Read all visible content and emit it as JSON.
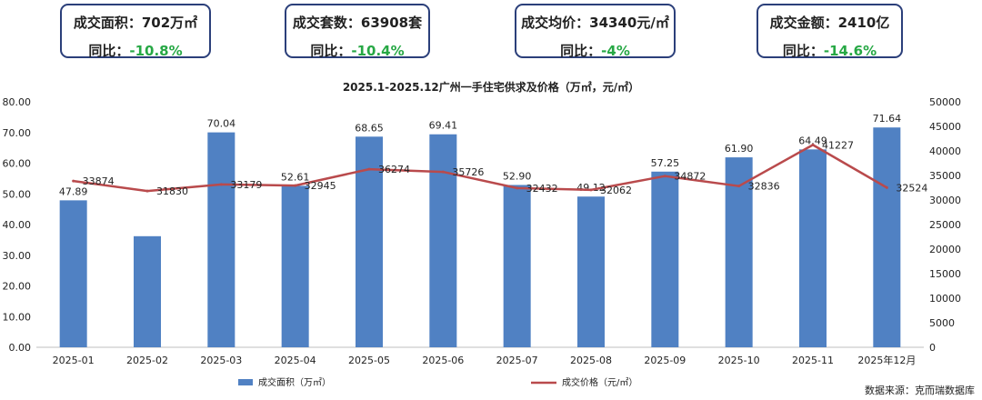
{
  "kpis": [
    {
      "label": "成交面积：",
      "value": "702万㎡",
      "yoy_label": "同比：",
      "yoy": "-10.8%"
    },
    {
      "label": "成交套数：",
      "value": "63908套",
      "yoy_label": "同比：",
      "yoy": "-10.4%"
    },
    {
      "label": "成交均价：",
      "value": "34340元/㎡",
      "yoy_label": "同比：",
      "yoy": "-4%"
    },
    {
      "label": "成交金额：",
      "value": "2410亿",
      "yoy_label": "同比：",
      "yoy": "-14.6%"
    }
  ],
  "source": "数据来源：克而瑞数据库",
  "colors": {
    "bar": "#5081c3",
    "line": "#b94a4c",
    "kpi_border": "#2b3f7a",
    "yoy": "#27a845"
  },
  "chart_data": {
    "type": "bar",
    "title": "2025.1-2025.12广州一手住宅供求及价格（万㎡，元/㎡）",
    "categories": [
      "2025-01",
      "2025-02",
      "2025-03",
      "2025-04",
      "2025-05",
      "2025-06",
      "2025-07",
      "2025-08",
      "2025-09",
      "2025-10",
      "2025-11",
      "2025年12月"
    ],
    "series": [
      {
        "name": "成交面积（万㎡）",
        "type": "bar",
        "axis": "left",
        "values": [
          47.89,
          36.2,
          70.04,
          52.61,
          68.65,
          69.41,
          52.9,
          49.12,
          57.25,
          61.9,
          64.49,
          71.64
        ],
        "labels": [
          "47.89",
          "",
          "70.04",
          "52.61",
          "68.65",
          "69.41",
          "52.90",
          "49.12",
          "57.25",
          "61.90",
          "64.49",
          "71.64"
        ]
      },
      {
        "name": "成交价格（元/㎡）",
        "type": "line",
        "axis": "right",
        "values": [
          33874,
          31830,
          33179,
          32945,
          36274,
          35726,
          32432,
          32062,
          34872,
          32836,
          41227,
          32524
        ],
        "labels": [
          "33874",
          "31830",
          "33179",
          "32945",
          "36274",
          "35726",
          "32432",
          "32062",
          "34872",
          "32836",
          "41227",
          "32524"
        ]
      }
    ],
    "y_left": {
      "min": 0,
      "max": 80,
      "step": 10,
      "ticks": [
        "0.00",
        "10.00",
        "20.00",
        "30.00",
        "40.00",
        "50.00",
        "60.00",
        "70.00",
        "80.00"
      ]
    },
    "y_right": {
      "min": 0,
      "max": 50000,
      "step": 5000,
      "ticks": [
        "0",
        "5000",
        "10000",
        "15000",
        "20000",
        "25000",
        "30000",
        "35000",
        "40000",
        "45000",
        "50000"
      ]
    },
    "legend_position": "bottom",
    "grid": false
  }
}
